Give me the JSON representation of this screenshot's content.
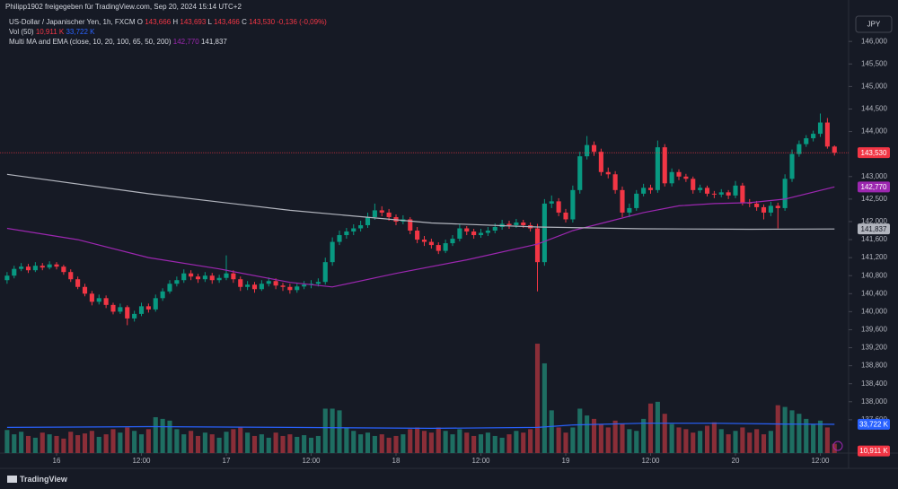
{
  "chart_data": {
    "type": "candlestick",
    "header": "Philipp1902 freigegeben für TradingView.com, Sep 20, 2024 15:14 UTC+2",
    "legend": {
      "symbol": "US-Dollar / Japanischer Yen, 1h, FXCM",
      "o_key": "O",
      "o": "143,666",
      "h_key": "H",
      "h": "143,693",
      "l_key": "L",
      "l": "143,466",
      "c_key": "C",
      "c": "143,530",
      "change": "-0,136 (-0,09%)",
      "vol_name": "Vol (50)",
      "vol_last": "10,911 K",
      "vol_avg": "33,722 K",
      "ma_name": "Multi MA and EMA (close, 10, 20, 100, 65, 50, 200)",
      "ma1": "142,770",
      "ma2": "141,837"
    },
    "currency": "JPY",
    "brand": "TradingView",
    "up_color": "#089981",
    "down_color": "#f23645",
    "volume_up_color": "#1e6e62",
    "volume_down_color": "#8a2e38",
    "xlim": [
      -1,
      119
    ],
    "ylim": [
      136.86,
      146.92
    ],
    "y2lim": [
      0,
      530
    ],
    "grid": false,
    "xticks": [
      {
        "value": 7,
        "label": "16"
      },
      {
        "value": 19,
        "label": "12:00"
      },
      {
        "value": 31,
        "label": "17"
      },
      {
        "value": 43,
        "label": "12:00"
      },
      {
        "value": 55,
        "label": "18"
      },
      {
        "value": 67,
        "label": "12:00"
      },
      {
        "value": 79,
        "label": "19"
      },
      {
        "value": 91,
        "label": "12:00"
      },
      {
        "value": 103,
        "label": "20"
      },
      {
        "value": 115,
        "label": "12:00"
      }
    ],
    "yticks": [
      {
        "value": 146,
        "label": "146,000"
      },
      {
        "value": 145.5,
        "label": "145,500"
      },
      {
        "value": 145,
        "label": "145,000"
      },
      {
        "value": 144.5,
        "label": "144,500"
      },
      {
        "value": 144,
        "label": "144,000"
      },
      {
        "value": 143,
        "label": "143,000"
      },
      {
        "value": 142.5,
        "label": "142,500"
      },
      {
        "value": 142,
        "label": "142,000"
      },
      {
        "value": 141.6,
        "label": "141,600"
      },
      {
        "value": 141.2,
        "label": "141,200"
      },
      {
        "value": 140.8,
        "label": "140,800"
      },
      {
        "value": 140.4,
        "label": "140,400"
      },
      {
        "value": 140,
        "label": "140,000"
      },
      {
        "value": 139.6,
        "label": "139,600"
      },
      {
        "value": 139.2,
        "label": "139,200"
      },
      {
        "value": 138.8,
        "label": "138,800"
      },
      {
        "value": 138.4,
        "label": "138,400"
      },
      {
        "value": 138,
        "label": "138,000"
      },
      {
        "value": 137.6,
        "label": "137,600"
      }
    ],
    "last_price_label": "143,530",
    "last_price_color": "#f23645",
    "ohlc": [
      [
        140.7,
        140.88,
        140.62,
        140.8
      ],
      [
        140.8,
        141.02,
        140.74,
        140.95
      ],
      [
        140.95,
        141.08,
        140.9,
        141.0
      ],
      [
        141.0,
        141.06,
        140.86,
        140.92
      ],
      [
        140.92,
        141.1,
        140.88,
        141.02
      ],
      [
        141.02,
        141.08,
        140.92,
        140.98
      ],
      [
        140.98,
        141.12,
        140.94,
        141.05
      ],
      [
        141.05,
        141.1,
        140.94,
        141.0
      ],
      [
        141.0,
        141.04,
        140.82,
        140.88
      ],
      [
        140.88,
        140.94,
        140.66,
        140.72
      ],
      [
        140.72,
        140.78,
        140.5,
        140.55
      ],
      [
        140.55,
        140.62,
        140.34,
        140.4
      ],
      [
        140.4,
        140.46,
        140.14,
        140.22
      ],
      [
        140.22,
        140.38,
        140.16,
        140.3
      ],
      [
        140.3,
        140.36,
        140.08,
        140.15
      ],
      [
        140.15,
        140.2,
        139.94,
        140.0
      ],
      [
        140.0,
        140.18,
        139.95,
        140.1
      ],
      [
        140.1,
        140.14,
        139.7,
        139.85
      ],
      [
        139.85,
        140.02,
        139.78,
        139.95
      ],
      [
        139.95,
        140.2,
        139.9,
        140.12
      ],
      [
        140.12,
        140.18,
        139.98,
        140.05
      ],
      [
        140.05,
        140.38,
        140.0,
        140.3
      ],
      [
        140.3,
        140.52,
        140.24,
        140.45
      ],
      [
        140.45,
        140.7,
        140.4,
        140.62
      ],
      [
        140.62,
        140.78,
        140.56,
        140.7
      ],
      [
        140.7,
        140.94,
        140.64,
        140.85
      ],
      [
        140.85,
        140.92,
        140.7,
        140.78
      ],
      [
        140.78,
        140.84,
        140.64,
        140.72
      ],
      [
        140.72,
        140.88,
        140.66,
        140.8
      ],
      [
        140.8,
        140.86,
        140.62,
        140.7
      ],
      [
        140.7,
        140.82,
        140.64,
        140.75
      ],
      [
        140.75,
        141.25,
        140.7,
        140.85
      ],
      [
        140.85,
        140.92,
        140.64,
        140.72
      ],
      [
        140.72,
        140.78,
        140.46,
        140.55
      ],
      [
        140.55,
        140.68,
        140.48,
        140.6
      ],
      [
        140.6,
        140.66,
        140.42,
        140.5
      ],
      [
        140.5,
        140.7,
        140.46,
        140.62
      ],
      [
        140.62,
        140.76,
        140.56,
        140.68
      ],
      [
        140.68,
        140.74,
        140.5,
        140.58
      ],
      [
        140.58,
        140.64,
        140.46,
        140.55
      ],
      [
        140.55,
        140.62,
        140.4,
        140.48
      ],
      [
        140.48,
        140.62,
        140.42,
        140.56
      ],
      [
        140.56,
        140.68,
        140.5,
        140.6
      ],
      [
        140.6,
        140.7,
        140.52,
        140.62
      ],
      [
        140.62,
        140.74,
        140.56,
        140.66
      ],
      [
        140.66,
        141.2,
        140.6,
        141.1
      ],
      [
        141.1,
        141.65,
        141.02,
        141.55
      ],
      [
        141.55,
        141.8,
        141.48,
        141.7
      ],
      [
        141.7,
        141.86,
        141.62,
        141.78
      ],
      [
        141.78,
        141.94,
        141.7,
        141.85
      ],
      [
        141.85,
        142.02,
        141.78,
        141.92
      ],
      [
        141.92,
        142.2,
        141.86,
        142.1
      ],
      [
        142.1,
        142.4,
        142.04,
        142.25
      ],
      [
        142.25,
        142.34,
        142.12,
        142.2
      ],
      [
        142.2,
        142.28,
        142.02,
        142.1
      ],
      [
        142.1,
        142.16,
        141.92,
        142.0
      ],
      [
        142.0,
        142.14,
        141.94,
        142.05
      ],
      [
        142.05,
        142.1,
        141.72,
        141.8
      ],
      [
        141.8,
        141.88,
        141.52,
        141.6
      ],
      [
        141.6,
        141.68,
        141.46,
        141.55
      ],
      [
        141.55,
        141.62,
        141.4,
        141.48
      ],
      [
        141.48,
        141.54,
        141.28,
        141.35
      ],
      [
        141.35,
        141.6,
        141.3,
        141.52
      ],
      [
        141.52,
        141.7,
        141.46,
        141.62
      ],
      [
        141.62,
        141.94,
        141.56,
        141.85
      ],
      [
        141.85,
        141.9,
        141.7,
        141.78
      ],
      [
        141.78,
        141.84,
        141.62,
        141.7
      ],
      [
        141.7,
        141.84,
        141.64,
        141.75
      ],
      [
        141.75,
        141.88,
        141.68,
        141.8
      ],
      [
        141.8,
        141.96,
        141.74,
        141.88
      ],
      [
        141.88,
        142.04,
        141.82,
        141.95
      ],
      [
        141.95,
        142.02,
        141.84,
        141.92
      ],
      [
        141.92,
        142.06,
        141.86,
        141.98
      ],
      [
        141.98,
        142.04,
        141.86,
        141.92
      ],
      [
        141.92,
        141.98,
        141.78,
        141.85
      ],
      [
        141.85,
        141.95,
        140.45,
        141.1
      ],
      [
        141.1,
        142.5,
        141.02,
        142.4
      ],
      [
        142.4,
        142.58,
        142.3,
        142.45
      ],
      [
        142.45,
        142.52,
        142.12,
        142.2
      ],
      [
        142.2,
        142.28,
        141.98,
        142.05
      ],
      [
        142.05,
        142.8,
        141.98,
        142.7
      ],
      [
        142.7,
        143.55,
        142.62,
        143.45
      ],
      [
        143.45,
        143.9,
        143.38,
        143.7
      ],
      [
        143.7,
        143.78,
        143.46,
        143.55
      ],
      [
        143.55,
        143.62,
        143.02,
        143.1
      ],
      [
        143.1,
        143.2,
        142.96,
        143.05
      ],
      [
        143.05,
        143.12,
        142.62,
        142.7
      ],
      [
        142.7,
        142.78,
        142.1,
        142.2
      ],
      [
        142.2,
        142.4,
        142.1,
        142.3
      ],
      [
        142.3,
        142.7,
        142.24,
        142.62
      ],
      [
        142.62,
        142.84,
        142.56,
        142.75
      ],
      [
        142.75,
        142.82,
        142.62,
        142.7
      ],
      [
        142.7,
        143.8,
        142.64,
        143.65
      ],
      [
        143.65,
        143.72,
        142.78,
        142.85
      ],
      [
        142.85,
        143.18,
        142.78,
        143.1
      ],
      [
        143.1,
        143.16,
        142.92,
        143.0
      ],
      [
        143.0,
        143.06,
        142.88,
        142.95
      ],
      [
        142.95,
        143.0,
        142.62,
        142.7
      ],
      [
        142.7,
        142.82,
        142.64,
        142.75
      ],
      [
        142.75,
        142.8,
        142.56,
        142.62
      ],
      [
        142.62,
        142.68,
        142.52,
        142.6
      ],
      [
        142.6,
        142.72,
        142.54,
        142.65
      ],
      [
        142.65,
        142.7,
        142.5,
        142.58
      ],
      [
        142.58,
        142.9,
        142.52,
        142.8
      ],
      [
        142.8,
        142.86,
        142.36,
        142.42
      ],
      [
        142.42,
        142.5,
        142.32,
        142.4
      ],
      [
        142.4,
        142.46,
        142.24,
        142.32
      ],
      [
        142.32,
        142.38,
        142.05,
        142.2
      ],
      [
        142.2,
        142.44,
        142.12,
        142.35
      ],
      [
        142.35,
        142.42,
        141.85,
        142.3
      ],
      [
        142.3,
        143.05,
        142.24,
        142.95
      ],
      [
        142.95,
        143.6,
        142.88,
        143.5
      ],
      [
        143.5,
        143.8,
        143.44,
        143.72
      ],
      [
        143.72,
        143.92,
        143.66,
        143.85
      ],
      [
        143.85,
        144.02,
        143.78,
        143.95
      ],
      [
        143.95,
        144.4,
        143.88,
        144.2
      ],
      [
        144.2,
        144.3,
        143.62,
        143.666
      ],
      [
        143.666,
        143.693,
        143.466,
        143.53
      ]
    ],
    "volume": [
      27,
      22,
      25,
      20,
      18,
      24,
      22,
      20,
      17,
      25,
      21,
      23,
      26,
      19,
      22,
      28,
      24,
      30,
      26,
      22,
      28,
      42,
      40,
      38,
      28,
      22,
      26,
      20,
      24,
      22,
      18,
      25,
      28,
      30,
      24,
      20,
      22,
      18,
      24,
      20,
      22,
      19,
      21,
      18,
      20,
      52,
      52,
      50,
      30,
      26,
      22,
      24,
      20,
      22,
      18,
      20,
      22,
      28,
      30,
      26,
      24,
      30,
      26,
      22,
      28,
      24,
      20,
      22,
      24,
      20,
      18,
      22,
      26,
      24,
      28,
      128,
      105,
      50,
      30,
      24,
      30,
      52,
      44,
      40,
      34,
      30,
      38,
      34,
      28,
      26,
      40,
      58,
      60,
      46,
      34,
      30,
      28,
      24,
      26,
      32,
      36,
      28,
      22,
      26,
      30,
      24,
      28,
      22,
      26,
      56,
      54,
      50,
      46,
      40,
      34,
      38,
      30,
      10.911
    ],
    "volume_ma": {
      "color": "#2962ff",
      "x": [
        0,
        20,
        40,
        60,
        75,
        80,
        90,
        100,
        110,
        117
      ],
      "values": [
        30,
        31,
        30,
        29,
        30,
        33,
        35,
        35,
        34,
        33.722
      ],
      "axis": "y2"
    },
    "overlays": [
      {
        "color": "#9c27b0",
        "x": [
          0,
          10,
          20,
          30,
          40,
          46,
          55,
          65,
          75,
          80,
          85,
          90,
          95,
          100,
          105,
          110,
          117
        ],
        "values": [
          141.85,
          141.6,
          141.2,
          140.95,
          140.65,
          140.55,
          140.85,
          141.15,
          141.5,
          141.8,
          142.0,
          142.2,
          142.35,
          142.4,
          142.42,
          142.5,
          142.77
        ]
      },
      {
        "color": "#b2b5be",
        "x": [
          0,
          20,
          40,
          60,
          75,
          90,
          105,
          117
        ],
        "values": [
          143.05,
          142.62,
          142.25,
          141.97,
          141.88,
          141.84,
          141.83,
          141.837
        ]
      }
    ]
  }
}
